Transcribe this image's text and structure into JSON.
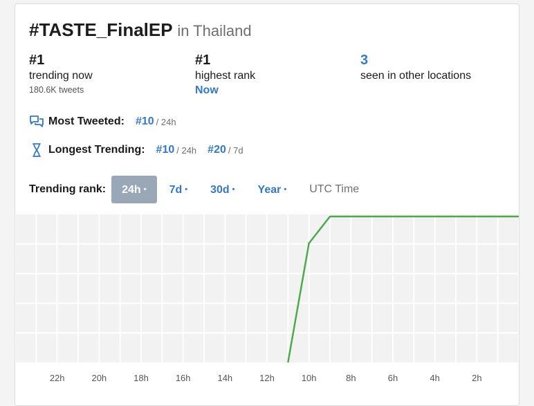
{
  "header": {
    "title": "#TASTE_FinalEP",
    "location": "in Thailand"
  },
  "stats": {
    "trending": {
      "value": "#1",
      "label": "trending now",
      "sub": "180.6K tweets"
    },
    "highest": {
      "value": "#1",
      "label": "highest rank",
      "when": "Now"
    },
    "other": {
      "value": "3",
      "label": "seen in other locations"
    }
  },
  "most_tweeted": {
    "label": "Most Tweeted:",
    "value": "#10",
    "period": "/ 24h",
    "icon": "chat-bubbles-icon"
  },
  "longest_trending": {
    "label": "Longest Trending:",
    "icon": "hourglass-icon",
    "values": [
      {
        "value": "#10",
        "period": "/ 24h"
      },
      {
        "value": "#20",
        "period": "/ 7d"
      }
    ]
  },
  "rank_tabs": {
    "label": "Trending rank:",
    "tabs": [
      {
        "label": "24h"
      },
      {
        "label": "7d"
      },
      {
        "label": "30d"
      },
      {
        "label": "Year"
      }
    ],
    "active": "24h",
    "time_label": "UTC Time"
  },
  "colors": {
    "accent": "#3478c6",
    "line": "#4caa4a",
    "active_tab": "#9aa7b6",
    "grid_bg": "#f2f2f2"
  },
  "chart_data": {
    "type": "line",
    "x_ticks": [
      "22h",
      "20h",
      "18h",
      "16h",
      "14h",
      "12h",
      "10h",
      "8h",
      "6h",
      "4h",
      "2h"
    ],
    "series": [
      {
        "values": [
          {
            "hours_ago": 11.0,
            "rank": 60
          },
          {
            "hours_ago": 10.0,
            "rank": 10
          },
          {
            "hours_ago": 9.0,
            "rank": 1
          },
          {
            "hours_ago": 0,
            "rank": 1
          }
        ]
      }
    ],
    "x_range_hours_ago": [
      24,
      0
    ],
    "y_range_rank": [
      1,
      50
    ],
    "grid": true
  }
}
